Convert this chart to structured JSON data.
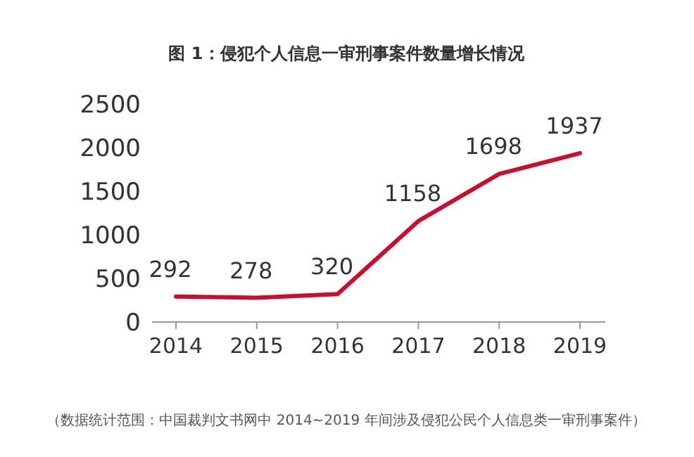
{
  "chart_data": {
    "type": "line",
    "title": "图 1：侵犯个人信息一审刑事案件数量增长情况",
    "categories": [
      "2014",
      "2015",
      "2016",
      "2017",
      "2018",
      "2019"
    ],
    "series": [
      {
        "color": "#c8102e",
        "values": [
          292,
          278,
          320,
          1158,
          1698,
          1937
        ]
      }
    ],
    "ylim": [
      0,
      2500
    ],
    "yticks": [
      0,
      500,
      1000,
      1500,
      2000,
      2500
    ],
    "grid": false,
    "marker": "none",
    "line_style": "solid",
    "data_labels": true,
    "annotations": [
      "（数据统计范围：中国裁判文书网中 2014~2019 年间涉及侵犯公民个人信息类一审刑事案件）"
    ]
  }
}
